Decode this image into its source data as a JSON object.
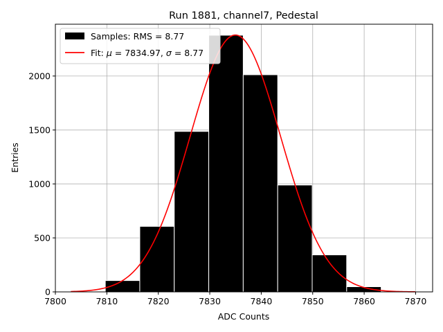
{
  "chart_data": {
    "type": "bar",
    "title": "Run 1881, channel7, Pedestal",
    "xlabel": "ADC Counts",
    "ylabel": "Entries",
    "xlim": [
      7800.0,
      7873.3
    ],
    "ylim": [
      0,
      2480
    ],
    "xticks": [
      7800,
      7810,
      7820,
      7830,
      7840,
      7850,
      7860,
      7870
    ],
    "yticks": [
      0,
      500,
      1000,
      1500,
      2000
    ],
    "grid": true,
    "legend_position": "top-left",
    "histogram": {
      "name": "Samples: RMS = 8.77",
      "bin_edges": [
        7803.0,
        7809.7,
        7816.4,
        7823.1,
        7829.8,
        7836.5,
        7843.2,
        7849.9,
        7856.6,
        7863.3,
        7870.0
      ],
      "counts": [
        3,
        105,
        607,
        1487,
        2378,
        2012,
        990,
        343,
        48,
        5
      ],
      "color": "#000000",
      "edge_color": "#ffffff"
    },
    "fit": {
      "name_prefix": "Fit: ",
      "mu_symbol": "μ",
      "mu_value": "= 7834.97,",
      "sigma_symbol": "σ",
      "sigma_value": "= 8.77",
      "mu": 7834.97,
      "sigma": 8.77,
      "peak": 2380,
      "x_range": [
        7803,
        7870
      ],
      "color": "#ff0000"
    }
  }
}
